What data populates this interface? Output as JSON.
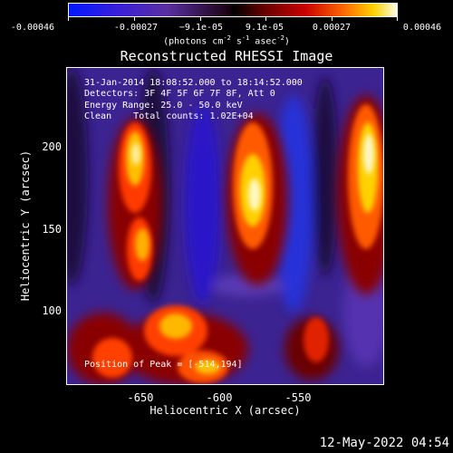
{
  "colorbar": {
    "ticks": [
      "-0.00046",
      "-0.00027",
      "−9.1e-05",
      "9.1e-05",
      "0.00027",
      "0.00046"
    ],
    "units_main": "(photons cm",
    "units_exp1": "-2",
    "units_mid": " s",
    "units_exp2": "-1",
    "units_mid2": " asec",
    "units_exp3": "-2",
    "units_end": ")"
  },
  "title": "Reconstructed RHESSI Image",
  "info": {
    "time_range": "31-Jan-2014 18:08:52.000 to 18:14:52.000",
    "detectors": "Detectors: 3F 4F 5F 6F 7F 8F, Att 0",
    "energy": "Energy Range: 25.0 - 50.0 keV",
    "clean": "Clean    Total counts: 1.02E+04"
  },
  "peak_text": "Position of Peak = [-514,194]",
  "x_axis": {
    "label": "Heliocentric X (arcsec)",
    "ticks": [
      "-650",
      "-600",
      "-550"
    ]
  },
  "y_axis": {
    "label": "Heliocentric Y (arcsec)",
    "ticks": [
      "200",
      "150",
      "100"
    ]
  },
  "timestamp": "12-May-2022 04:54",
  "colors": {
    "background": "#000000",
    "text": "#ffffff"
  }
}
